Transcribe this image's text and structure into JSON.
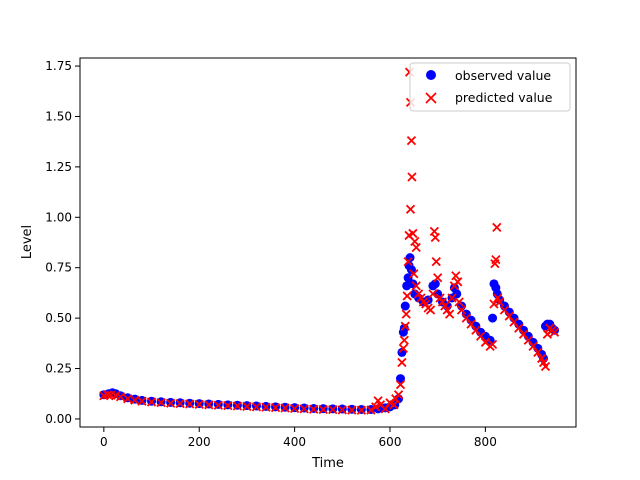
{
  "chart_data": {
    "type": "scatter",
    "title": "",
    "xlabel": "Time",
    "ylabel": "Level",
    "xlim": [
      -50,
      990
    ],
    "ylim": [
      -0.04,
      1.79
    ],
    "xticks": [
      0,
      200,
      400,
      600,
      800
    ],
    "yticks": [
      0.0,
      0.25,
      0.5,
      0.75,
      1.0,
      1.25,
      1.5,
      1.75
    ],
    "ytick_labels": [
      "0.00",
      "0.25",
      "0.50",
      "0.75",
      "1.00",
      "1.25",
      "1.50",
      "1.75"
    ],
    "grid": false,
    "legend_position": "top-right",
    "series": [
      {
        "name": "observed value",
        "marker": "circle",
        "color": "#0000ff",
        "points": [
          [
            0,
            0.12
          ],
          [
            10,
            0.125
          ],
          [
            18,
            0.13
          ],
          [
            25,
            0.125
          ],
          [
            35,
            0.115
          ],
          [
            50,
            0.105
          ],
          [
            65,
            0.098
          ],
          [
            80,
            0.092
          ],
          [
            100,
            0.088
          ],
          [
            120,
            0.085
          ],
          [
            140,
            0.082
          ],
          [
            160,
            0.08
          ],
          [
            180,
            0.078
          ],
          [
            200,
            0.076
          ],
          [
            220,
            0.074
          ],
          [
            240,
            0.072
          ],
          [
            260,
            0.07
          ],
          [
            280,
            0.068
          ],
          [
            300,
            0.066
          ],
          [
            320,
            0.064
          ],
          [
            340,
            0.062
          ],
          [
            360,
            0.06
          ],
          [
            380,
            0.058
          ],
          [
            400,
            0.056
          ],
          [
            420,
            0.054
          ],
          [
            440,
            0.052
          ],
          [
            460,
            0.051
          ],
          [
            480,
            0.05
          ],
          [
            500,
            0.049
          ],
          [
            520,
            0.048
          ],
          [
            540,
            0.047
          ],
          [
            560,
            0.047
          ],
          [
            575,
            0.05
          ],
          [
            590,
            0.055
          ],
          [
            600,
            0.06
          ],
          [
            610,
            0.07
          ],
          [
            618,
            0.1
          ],
          [
            622,
            0.2
          ],
          [
            625,
            0.33
          ],
          [
            628,
            0.43
          ],
          [
            630,
            0.45
          ],
          [
            632,
            0.56
          ],
          [
            635,
            0.66
          ],
          [
            638,
            0.7
          ],
          [
            640,
            0.76
          ],
          [
            642,
            0.8
          ],
          [
            645,
            0.74
          ],
          [
            648,
            0.67
          ],
          [
            652,
            0.62
          ],
          [
            660,
            0.6
          ],
          [
            670,
            0.58
          ],
          [
            680,
            0.59
          ],
          [
            690,
            0.66
          ],
          [
            695,
            0.67
          ],
          [
            700,
            0.62
          ],
          [
            710,
            0.58
          ],
          [
            720,
            0.56
          ],
          [
            730,
            0.6
          ],
          [
            735,
            0.65
          ],
          [
            740,
            0.62
          ],
          [
            750,
            0.56
          ],
          [
            760,
            0.52
          ],
          [
            770,
            0.49
          ],
          [
            780,
            0.46
          ],
          [
            790,
            0.43
          ],
          [
            800,
            0.41
          ],
          [
            810,
            0.39
          ],
          [
            815,
            0.5
          ],
          [
            818,
            0.67
          ],
          [
            822,
            0.65
          ],
          [
            825,
            0.62
          ],
          [
            830,
            0.59
          ],
          [
            840,
            0.56
          ],
          [
            850,
            0.53
          ],
          [
            860,
            0.5
          ],
          [
            870,
            0.47
          ],
          [
            880,
            0.44
          ],
          [
            890,
            0.41
          ],
          [
            900,
            0.38
          ],
          [
            910,
            0.35
          ],
          [
            918,
            0.32
          ],
          [
            922,
            0.3
          ],
          [
            926,
            0.46
          ],
          [
            930,
            0.47
          ],
          [
            935,
            0.47
          ],
          [
            940,
            0.45
          ],
          [
            945,
            0.44
          ]
        ]
      },
      {
        "name": "predicted value",
        "marker": "x",
        "color": "#ff0000",
        "points": [
          [
            0,
            0.115
          ],
          [
            8,
            0.12
          ],
          [
            15,
            0.118
          ],
          [
            25,
            0.115
          ],
          [
            35,
            0.11
          ],
          [
            50,
            0.1
          ],
          [
            65,
            0.093
          ],
          [
            80,
            0.088
          ],
          [
            100,
            0.084
          ],
          [
            120,
            0.081
          ],
          [
            140,
            0.078
          ],
          [
            160,
            0.076
          ],
          [
            180,
            0.074
          ],
          [
            200,
            0.072
          ],
          [
            220,
            0.07
          ],
          [
            240,
            0.068
          ],
          [
            260,
            0.066
          ],
          [
            280,
            0.064
          ],
          [
            300,
            0.062
          ],
          [
            320,
            0.06
          ],
          [
            340,
            0.058
          ],
          [
            360,
            0.056
          ],
          [
            380,
            0.054
          ],
          [
            400,
            0.052
          ],
          [
            420,
            0.05
          ],
          [
            440,
            0.048
          ],
          [
            460,
            0.047
          ],
          [
            480,
            0.046
          ],
          [
            500,
            0.045
          ],
          [
            520,
            0.044
          ],
          [
            540,
            0.043
          ],
          [
            560,
            0.044
          ],
          [
            570,
            0.06
          ],
          [
            575,
            0.09
          ],
          [
            580,
            0.07
          ],
          [
            590,
            0.05
          ],
          [
            600,
            0.08
          ],
          [
            608,
            0.07
          ],
          [
            612,
            0.1
          ],
          [
            618,
            0.12
          ],
          [
            622,
            0.17
          ],
          [
            625,
            0.28
          ],
          [
            628,
            0.35
          ],
          [
            630,
            0.39
          ],
          [
            632,
            0.46
          ],
          [
            634,
            0.52
          ],
          [
            636,
            0.61
          ],
          [
            638,
            0.78
          ],
          [
            640,
            0.91
          ],
          [
            641,
            1.72
          ],
          [
            643,
            1.57
          ],
          [
            645,
            1.38
          ],
          [
            646,
            1.2
          ],
          [
            643,
            1.04
          ],
          [
            648,
            0.92
          ],
          [
            652,
            0.88
          ],
          [
            655,
            0.85
          ],
          [
            650,
            0.72
          ],
          [
            655,
            0.66
          ],
          [
            660,
            0.62
          ],
          [
            665,
            0.6
          ],
          [
            670,
            0.58
          ],
          [
            675,
            0.57
          ],
          [
            680,
            0.55
          ],
          [
            685,
            0.54
          ],
          [
            690,
            0.62
          ],
          [
            693,
            0.93
          ],
          [
            695,
            0.9
          ],
          [
            697,
            0.78
          ],
          [
            700,
            0.7
          ],
          [
            705,
            0.6
          ],
          [
            710,
            0.58
          ],
          [
            715,
            0.56
          ],
          [
            720,
            0.54
          ],
          [
            725,
            0.52
          ],
          [
            730,
            0.6
          ],
          [
            735,
            0.66
          ],
          [
            738,
            0.71
          ],
          [
            742,
            0.68
          ],
          [
            745,
            0.58
          ],
          [
            750,
            0.54
          ],
          [
            760,
            0.5
          ],
          [
            770,
            0.47
          ],
          [
            780,
            0.44
          ],
          [
            790,
            0.41
          ],
          [
            800,
            0.38
          ],
          [
            810,
            0.36
          ],
          [
            815,
            0.37
          ],
          [
            818,
            0.57
          ],
          [
            820,
            0.77
          ],
          [
            822,
            0.79
          ],
          [
            824,
            0.95
          ],
          [
            826,
            0.6
          ],
          [
            830,
            0.58
          ],
          [
            840,
            0.54
          ],
          [
            850,
            0.51
          ],
          [
            860,
            0.48
          ],
          [
            870,
            0.45
          ],
          [
            880,
            0.42
          ],
          [
            890,
            0.39
          ],
          [
            900,
            0.36
          ],
          [
            910,
            0.33
          ],
          [
            918,
            0.3
          ],
          [
            922,
            0.28
          ],
          [
            926,
            0.26
          ],
          [
            930,
            0.42
          ],
          [
            935,
            0.45
          ],
          [
            940,
            0.44
          ],
          [
            945,
            0.43
          ]
        ]
      }
    ]
  }
}
